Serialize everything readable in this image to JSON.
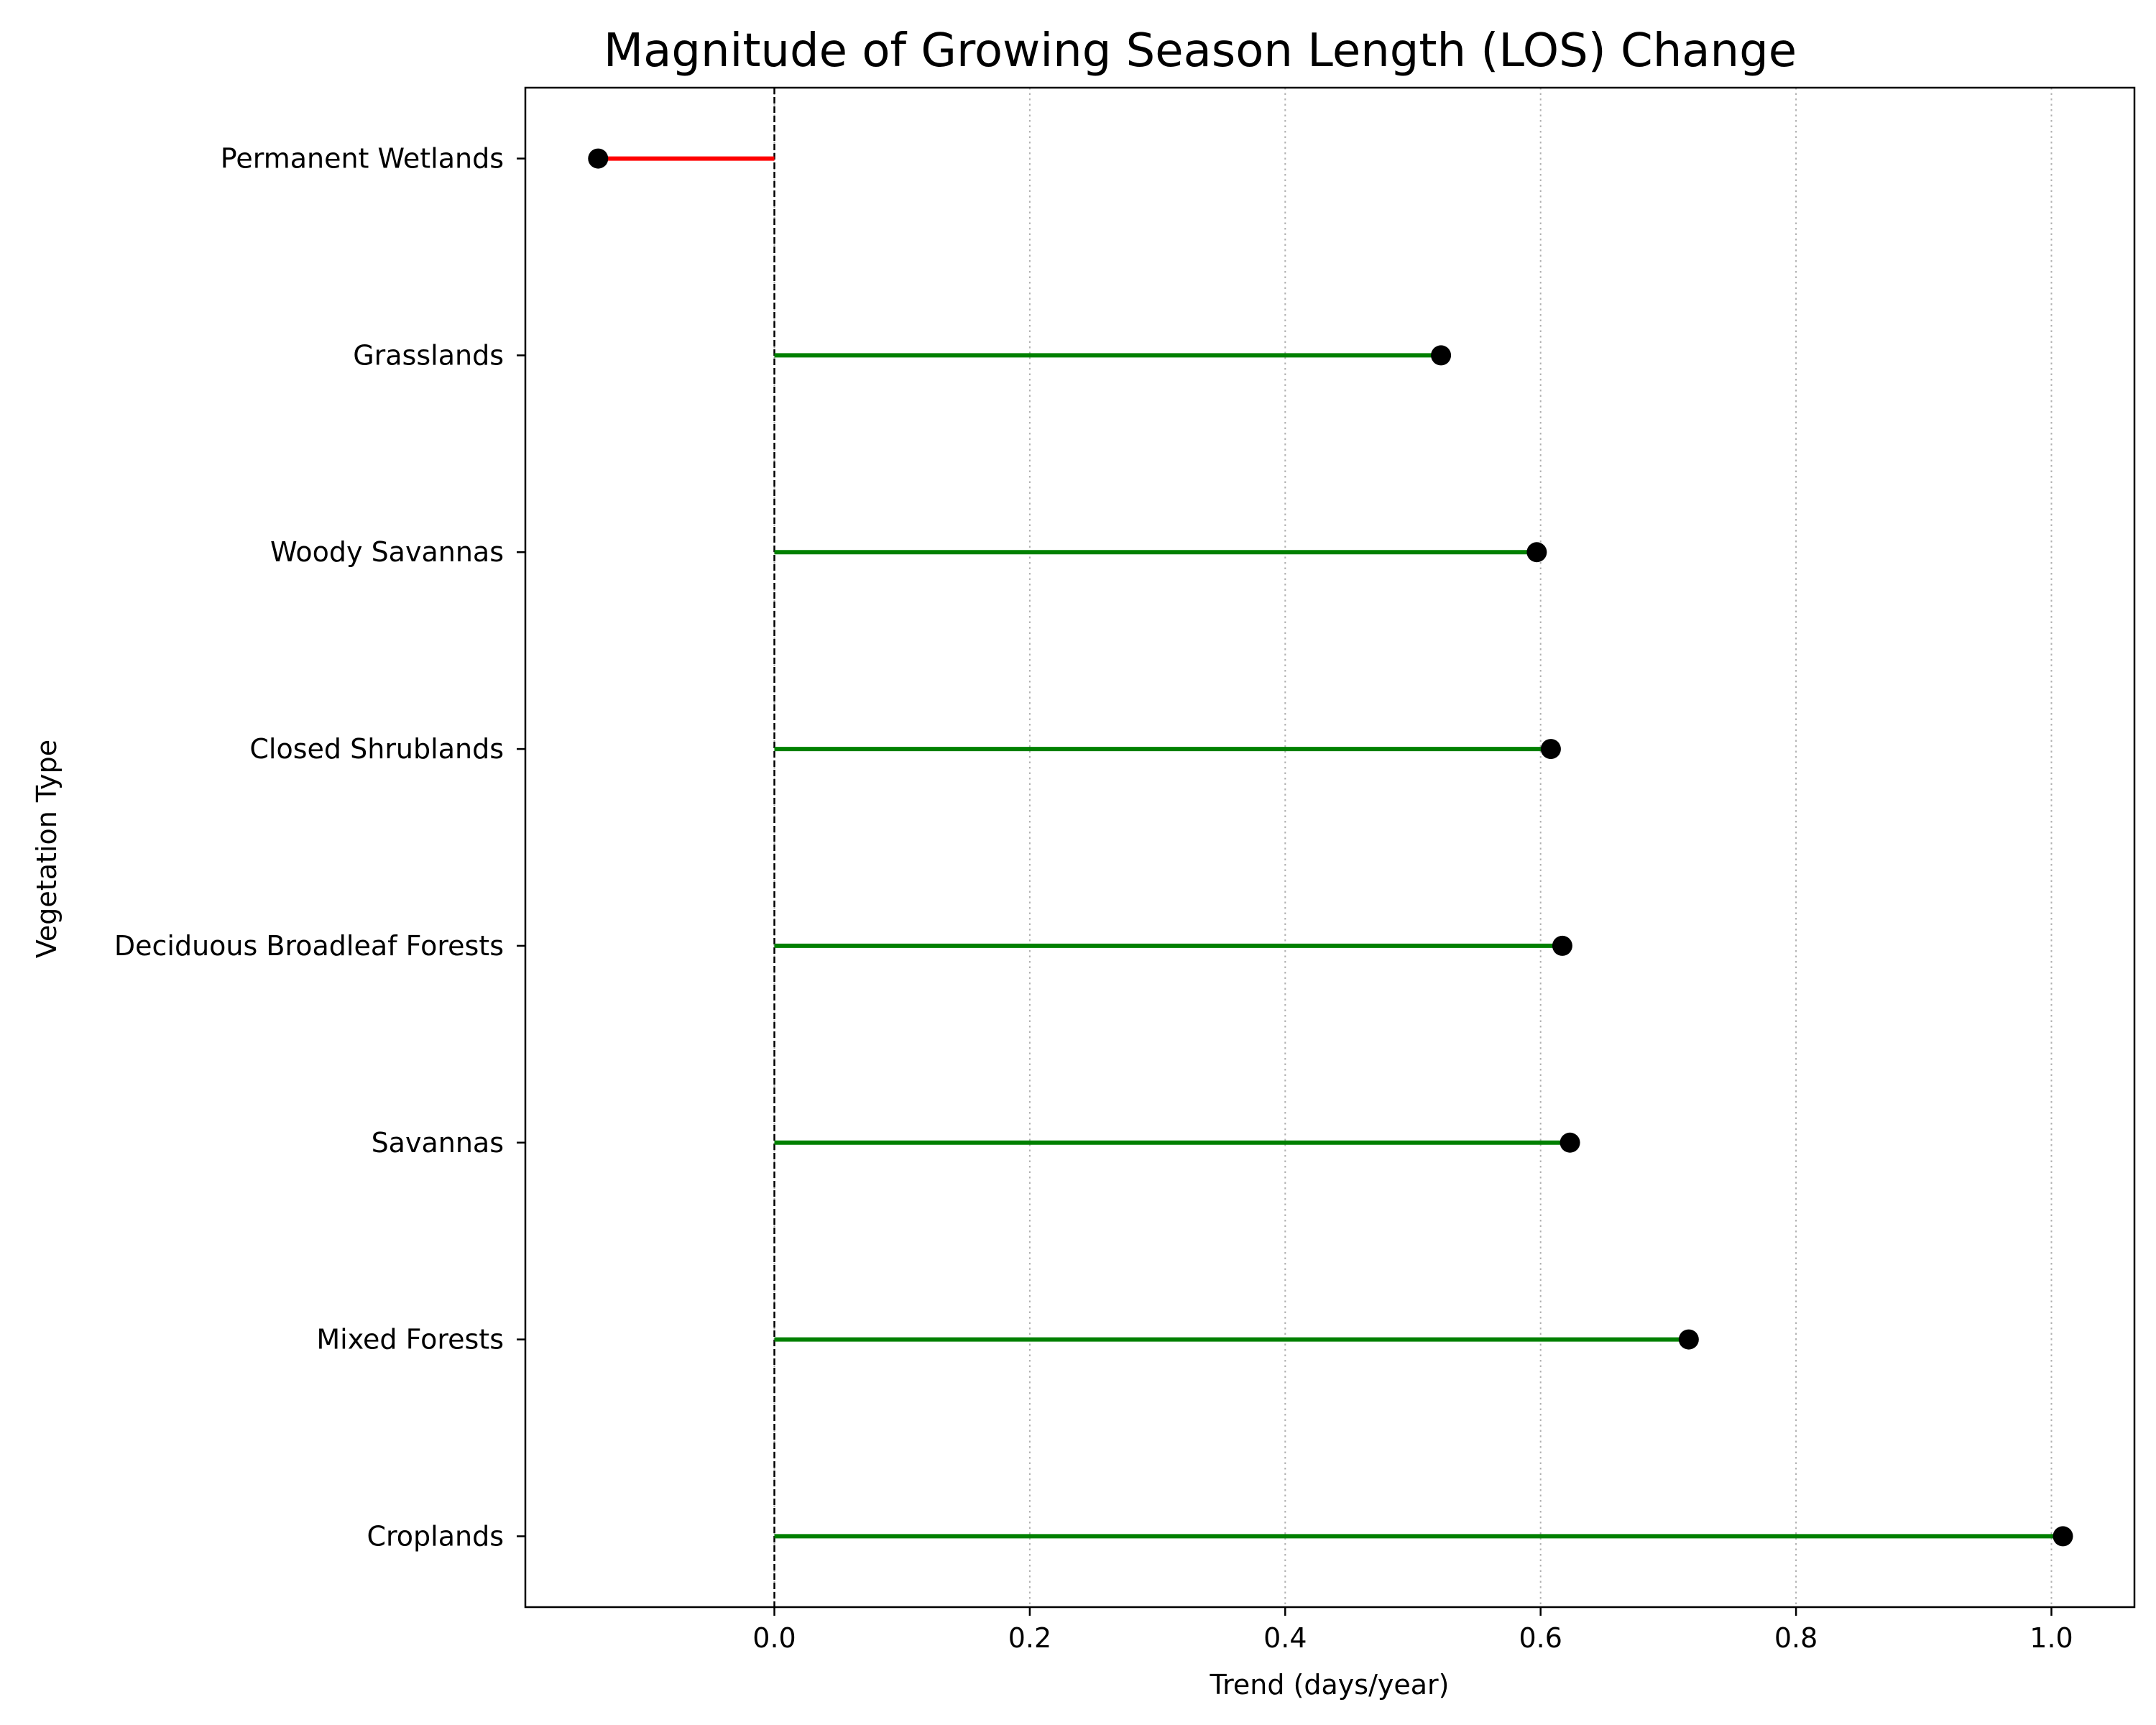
{
  "chart_data": {
    "type": "lollipop",
    "title": "Magnitude of Growing Season Length (LOS) Change",
    "xlabel": "Trend (days/year)",
    "ylabel": "Vegetation Type",
    "categories": [
      "Permanent Wetlands",
      "Grasslands",
      "Woody Savannas",
      "Closed Shrublands",
      "Deciduous Broadleaf Forests",
      "Savannas",
      "Mixed Forests",
      "Croplands"
    ],
    "values": [
      -0.138,
      0.522,
      0.597,
      0.608,
      0.617,
      0.623,
      0.716,
      1.009
    ],
    "xlim": [
      -0.195,
      1.065
    ],
    "xticks": [
      0.0,
      0.2,
      0.4,
      0.6,
      0.8,
      1.0
    ],
    "xtick_labels": [
      "0.0",
      "0.2",
      "0.4",
      "0.6",
      "0.8",
      "1.0"
    ],
    "grid": "x-axis dotted",
    "reference_line": 0,
    "colors": {
      "positive": "#008000",
      "negative": "#ff0000",
      "marker": "#000000",
      "grid": "#b0b0b0"
    }
  }
}
